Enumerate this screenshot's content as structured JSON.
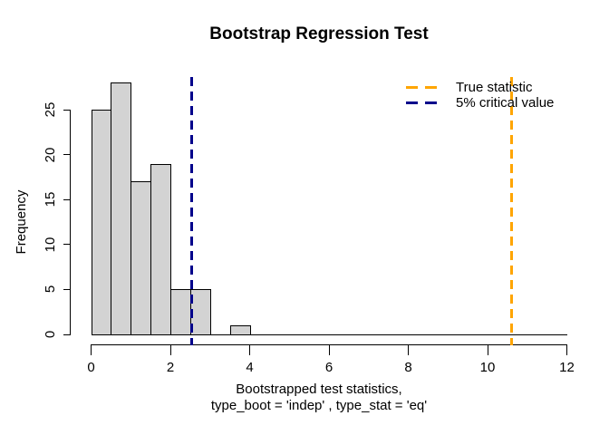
{
  "title": "Bootstrap Regression Test",
  "chart_data": {
    "type": "bar",
    "subtype": "histogram",
    "title": "Bootstrap Regression Test",
    "xlabel_line1": "Bootstrapped test statistics,",
    "xlabel_line2": "type_boot = 'indep' , type_stat = 'eq'",
    "ylabel": "Frequency",
    "xlim": [
      0,
      12
    ],
    "ylim": [
      0,
      25
    ],
    "x_ticks": [
      0,
      2,
      4,
      6,
      8,
      10,
      12
    ],
    "y_ticks": [
      0,
      5,
      10,
      15,
      20,
      25
    ],
    "grid": false,
    "bar_fill": "#d3d3d3",
    "bar_stroke": "#000000",
    "bins": [
      {
        "from": 0.0,
        "to": 0.5,
        "count": 25
      },
      {
        "from": 0.5,
        "to": 1.0,
        "count": 28
      },
      {
        "from": 1.0,
        "to": 1.5,
        "count": 17
      },
      {
        "from": 1.5,
        "to": 2.0,
        "count": 19
      },
      {
        "from": 2.0,
        "to": 2.5,
        "count": 5
      },
      {
        "from": 2.5,
        "to": 3.0,
        "count": 5
      },
      {
        "from": 3.0,
        "to": 3.5,
        "count": 0
      },
      {
        "from": 3.5,
        "to": 4.0,
        "count": 1
      }
    ],
    "vlines": [
      {
        "name": "true-statistic-line",
        "value": 10.6,
        "color": "#FFA500",
        "style": "dashed"
      },
      {
        "name": "critical-value-line",
        "value": 2.53,
        "color": "#00008B",
        "style": "dashed"
      }
    ],
    "legend": {
      "position": "top-right",
      "entries": [
        {
          "label": "True statistic",
          "color": "#FFA500",
          "line_style": "dashed"
        },
        {
          "label": "5% critical value",
          "color": "#00008B",
          "line_style": "dashed"
        }
      ]
    }
  }
}
